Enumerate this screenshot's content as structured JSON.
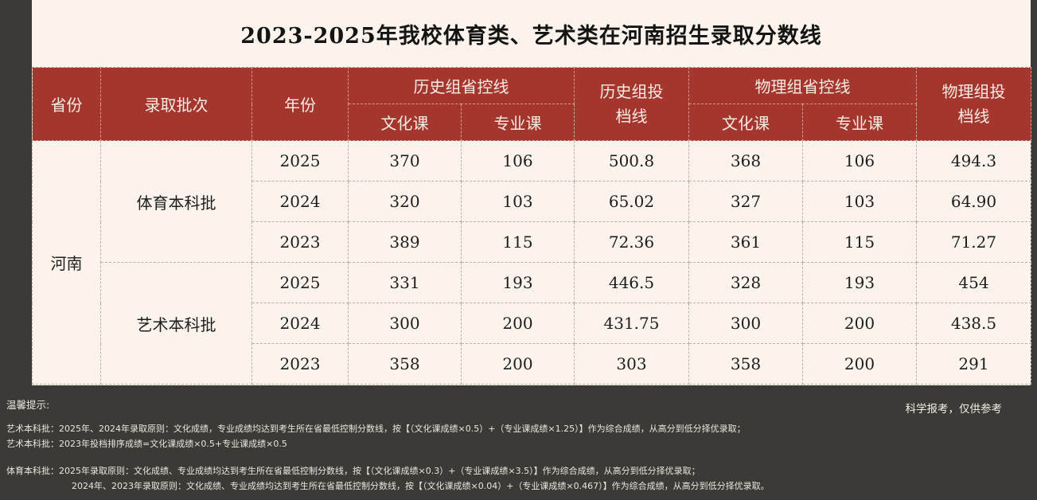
{
  "title": "2023-2025年我校体育类、艺术类在河南招生录取分数线",
  "table": {
    "headers": {
      "province": "省份",
      "batch": "录取批次",
      "year": "年份",
      "history_group": "历史组省控线",
      "history_cut": "历史组投档线",
      "physics_group": "物理组省控线",
      "physics_cut": "物理组投档线",
      "culture": "文化课",
      "major": "专业课"
    },
    "province": "河南",
    "groups": [
      {
        "batch": "体育本科批",
        "rows": [
          {
            "year": "2025",
            "h_culture": "370",
            "h_major": "106",
            "h_cut": "500.8",
            "p_culture": "368",
            "p_major": "106",
            "p_cut": "494.3"
          },
          {
            "year": "2024",
            "h_culture": "320",
            "h_major": "103",
            "h_cut": "65.02",
            "p_culture": "327",
            "p_major": "103",
            "p_cut": "64.90"
          },
          {
            "year": "2023",
            "h_culture": "389",
            "h_major": "115",
            "h_cut": "72.36",
            "p_culture": "361",
            "p_major": "115",
            "p_cut": "71.27"
          }
        ]
      },
      {
        "batch": "艺术本科批",
        "rows": [
          {
            "year": "2025",
            "h_culture": "331",
            "h_major": "193",
            "h_cut": "446.5",
            "p_culture": "328",
            "p_major": "193",
            "p_cut": "454"
          },
          {
            "year": "2024",
            "h_culture": "300",
            "h_major": "200",
            "h_cut": "431.75",
            "p_culture": "300",
            "p_major": "200",
            "p_cut": "438.5"
          },
          {
            "year": "2023",
            "h_culture": "358",
            "h_major": "200",
            "h_cut": "303",
            "p_culture": "358",
            "p_major": "200",
            "p_cut": "291"
          }
        ]
      }
    ]
  },
  "notes": {
    "title": "温馨提示:",
    "reference": "科学报考，仅供参考",
    "lines": [
      "艺术本科批：2025年、2024年录取原则：文化成绩，专业成绩均达到考生所在省最低控制分数线，按【（文化课成绩×0.5）+（专业课成绩×1.25）】作为综合成绩，从高分到低分择优录取；",
      "艺术本科批：2023年投档排序成绩=文化课成绩×0.5+专业课成绩×0.5",
      "体育本科批：2025年录取原则：文化成绩、专业成绩均达到考生所在省最低控制分数线，按【（文化课成绩×0.3）+（专业课成绩×3.5）】作为综合成绩，从高分到低分择优录取；",
      "2024年、2023年录取原则：文化成绩、专业成绩均达到考生所在省最低控制分数线，按【（文化课成绩×0.04）+（专业课成绩×0.467）】作为综合成绩，从高分到低分择优录取。"
    ]
  }
}
